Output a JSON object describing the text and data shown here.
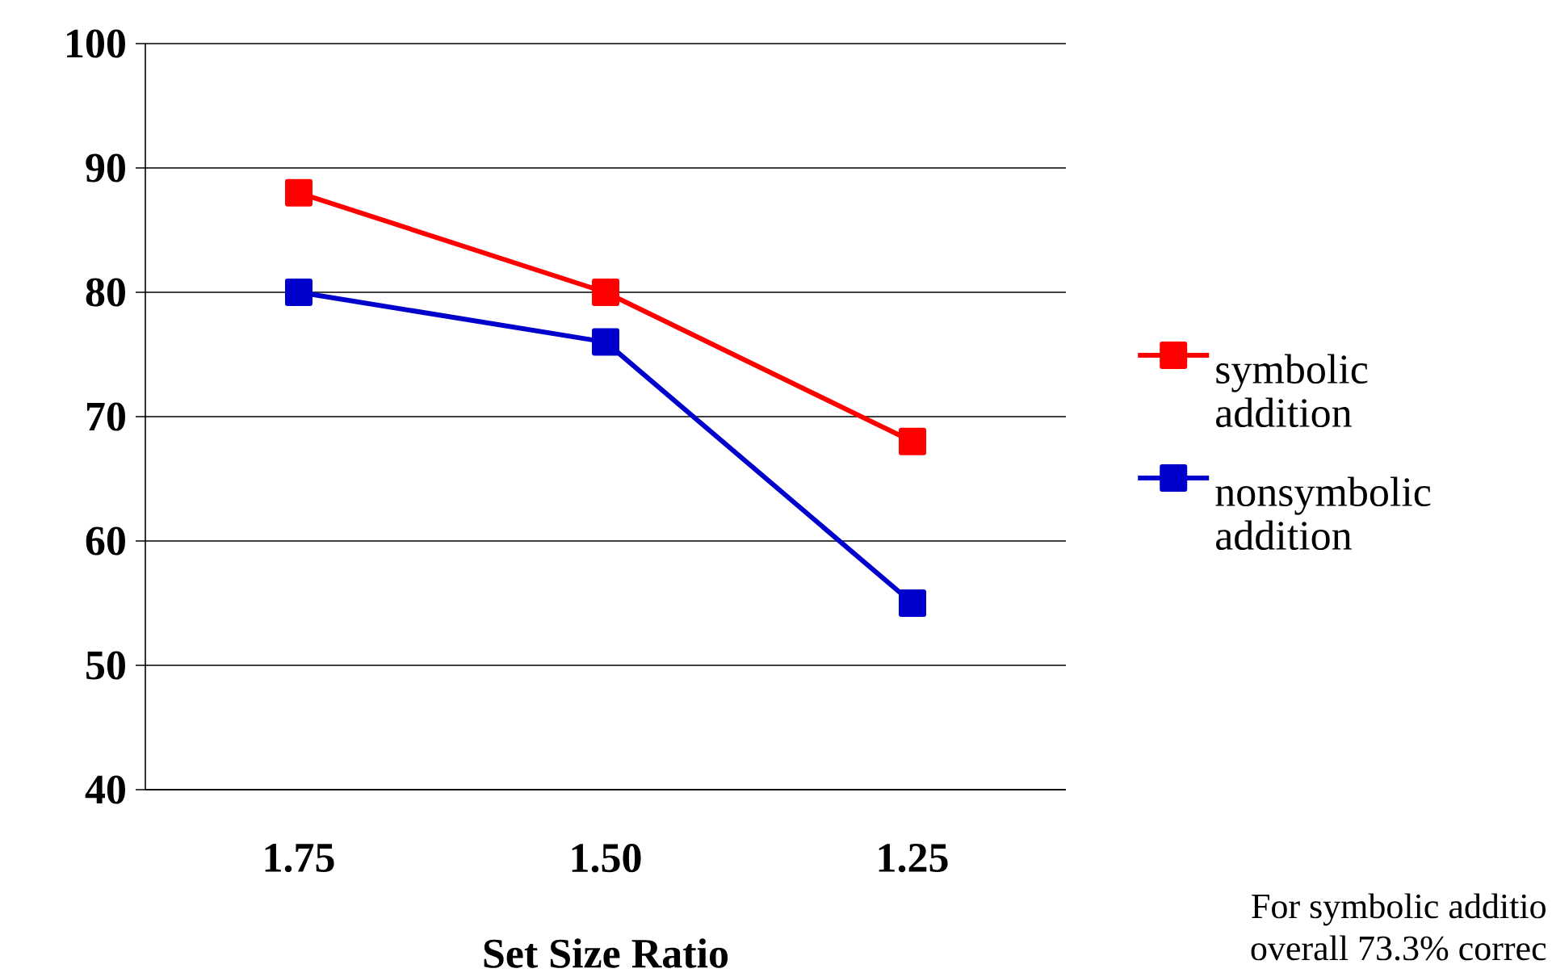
{
  "chart_data": {
    "type": "line",
    "xlabel": "Set Size Ratio",
    "categories": [
      "1.75",
      "1.50",
      "1.25"
    ],
    "series": [
      {
        "name": "symbolic addition",
        "color": "#ff0000",
        "values": [
          88,
          80,
          68
        ]
      },
      {
        "name": "nonsymbolic addition",
        "color": "#0000cc",
        "values": [
          80,
          76,
          55
        ]
      }
    ],
    "ylim": [
      40,
      100
    ],
    "yticks": [
      40,
      50,
      60,
      70,
      80,
      90,
      100
    ],
    "grid": "y",
    "legend": "right",
    "marker": "square",
    "line_style": "solid",
    "annotations": [
      "For symbolic additio",
      "overall 73.3% correc"
    ]
  }
}
